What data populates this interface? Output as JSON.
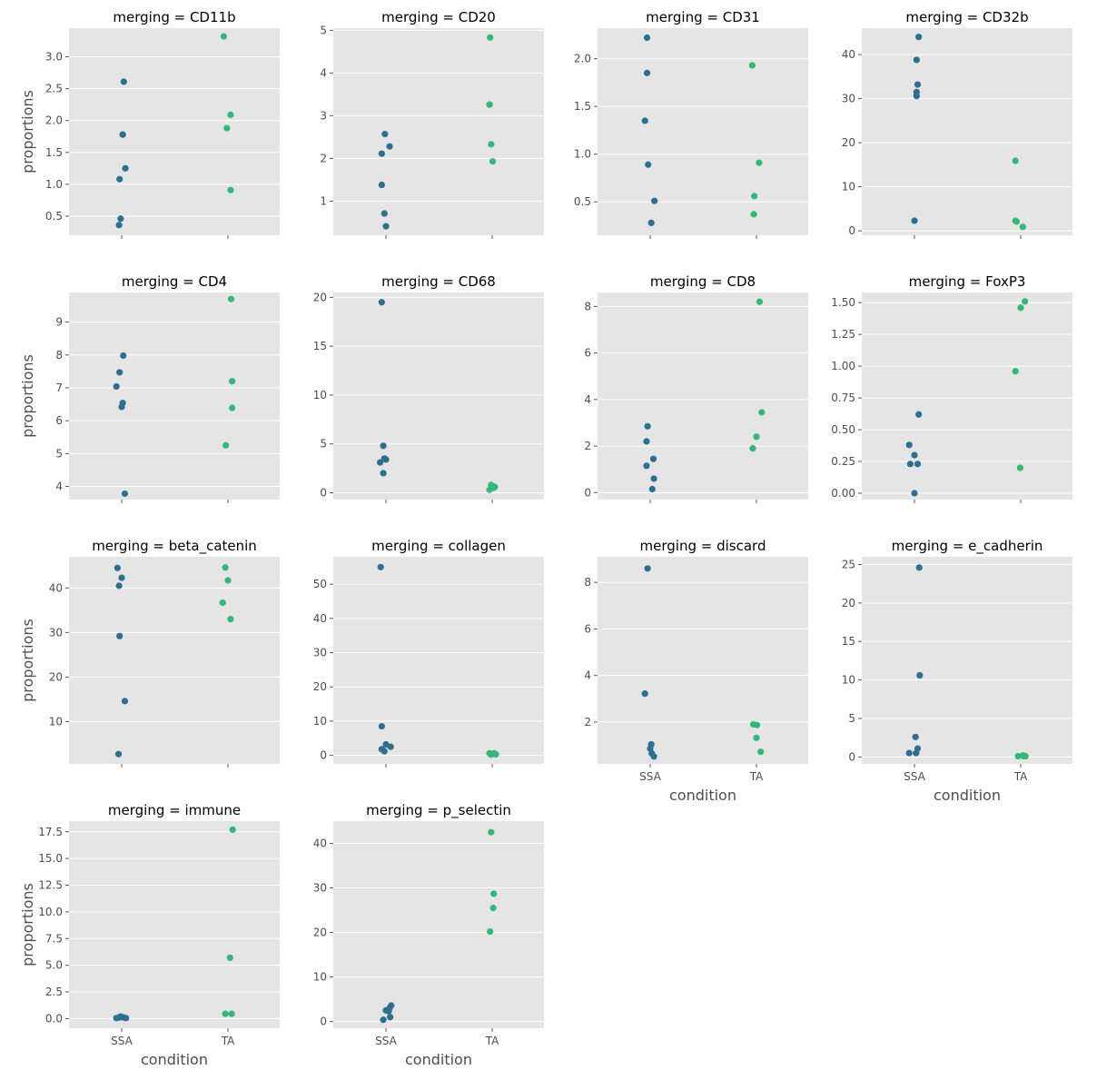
{
  "chart_data": {
    "type": "scatter",
    "layout": "facet-grid",
    "xlabel": "condition",
    "ylabel": "proportions",
    "x_categories": [
      "SSA",
      "TA"
    ],
    "colors": {
      "SSA": "#2e6e8e",
      "TA": "#35b779"
    },
    "grid": "horizontal",
    "facets": [
      {
        "title": "merging = CD11b",
        "ylim": [
          0.2,
          3.45
        ],
        "yticks": [
          "0.5",
          "1.0",
          "1.5",
          "2.0",
          "2.5",
          "3.0"
        ],
        "yticks_values": [
          0.5,
          1.0,
          1.5,
          2.0,
          2.5,
          3.0
        ],
        "points": {
          "SSA": [
            [
              -0.05,
              0.36
            ],
            [
              -0.02,
              0.46
            ],
            [
              -0.04,
              1.08
            ],
            [
              0.07,
              1.25
            ],
            [
              0.02,
              1.78
            ],
            [
              0.04,
              2.61
            ]
          ],
          "TA": [
            [
              -0.08,
              3.32
            ],
            [
              -0.02,
              1.88
            ],
            [
              0.05,
              2.09
            ],
            [
              0.05,
              0.91
            ]
          ]
        }
      },
      {
        "title": "merging = CD20",
        "ylim": [
          0.2,
          5.05
        ],
        "yticks": [
          "1",
          "2",
          "3",
          "4",
          "5"
        ],
        "yticks_values": [
          1,
          2,
          3,
          4,
          5
        ],
        "points": {
          "SSA": [
            [
              0.0,
              0.41
            ],
            [
              -0.03,
              0.71
            ],
            [
              -0.08,
              1.38
            ],
            [
              -0.08,
              2.11
            ],
            [
              -0.02,
              2.57
            ],
            [
              0.07,
              2.28
            ]
          ],
          "TA": [
            [
              -0.04,
              4.83
            ],
            [
              -0.05,
              3.26
            ],
            [
              -0.02,
              2.33
            ],
            [
              0.01,
              1.93
            ]
          ]
        }
      },
      {
        "title": "merging = CD31",
        "ylim": [
          0.15,
          2.32
        ],
        "yticks": [
          "0.5",
          "1.0",
          "1.5",
          "2.0"
        ],
        "yticks_values": [
          0.5,
          1.0,
          1.5,
          2.0
        ],
        "points": {
          "SSA": [
            [
              0.02,
              0.28
            ],
            [
              0.08,
              0.51
            ],
            [
              -0.04,
              0.89
            ],
            [
              -0.1,
              1.35
            ],
            [
              -0.06,
              1.85
            ],
            [
              -0.06,
              2.22
            ]
          ],
          "TA": [
            [
              -0.05,
              0.37
            ],
            [
              -0.04,
              0.56
            ],
            [
              0.05,
              0.91
            ],
            [
              -0.08,
              1.93
            ]
          ]
        }
      },
      {
        "title": "merging = CD32b",
        "ylim": [
          -1.0,
          46.0
        ],
        "yticks": [
          "0",
          "10",
          "20",
          "30",
          "40"
        ],
        "yticks_values": [
          0,
          10,
          20,
          30,
          40
        ],
        "points": {
          "SSA": [
            [
              0.0,
              2.3
            ],
            [
              0.04,
              30.6
            ],
            [
              0.04,
              31.5
            ],
            [
              0.06,
              33.2
            ],
            [
              0.04,
              38.8
            ],
            [
              0.08,
              44.0
            ]
          ],
          "TA": [
            [
              -0.1,
              2.3
            ],
            [
              -0.08,
              2.1
            ],
            [
              0.04,
              0.9
            ],
            [
              -0.1,
              15.9
            ]
          ]
        }
      },
      {
        "title": "merging = CD4",
        "ylim": [
          3.6,
          9.9
        ],
        "yticks": [
          "4",
          "5",
          "6",
          "7",
          "8",
          "9"
        ],
        "yticks_values": [
          4,
          5,
          6,
          7,
          8,
          9
        ],
        "points": {
          "SSA": [
            [
              0.06,
              3.78
            ],
            [
              0.0,
              6.42
            ],
            [
              0.02,
              6.54
            ],
            [
              -0.1,
              7.04
            ],
            [
              -0.04,
              7.47
            ],
            [
              0.03,
              7.98
            ]
          ],
          "TA": [
            [
              -0.04,
              5.25
            ],
            [
              0.08,
              6.39
            ],
            [
              0.08,
              7.2
            ],
            [
              0.06,
              9.7
            ]
          ]
        }
      },
      {
        "title": "merging = CD68",
        "ylim": [
          -0.7,
          20.5
        ],
        "yticks": [
          "0",
          "5",
          "10",
          "15",
          "20"
        ],
        "yticks_values": [
          0,
          5,
          10,
          15,
          20
        ],
        "points": {
          "SSA": [
            [
              -0.05,
              2.0
            ],
            [
              -0.11,
              3.1
            ],
            [
              -0.03,
              3.5
            ],
            [
              0.0,
              3.4
            ],
            [
              -0.05,
              4.8
            ],
            [
              -0.08,
              19.5
            ]
          ],
          "TA": [
            [
              -0.05,
              0.3
            ],
            [
              -0.02,
              0.8
            ],
            [
              0.03,
              0.5
            ],
            [
              0.05,
              0.6
            ]
          ]
        }
      },
      {
        "title": "merging = CD8",
        "ylim": [
          -0.3,
          8.6
        ],
        "yticks": [
          "0",
          "2",
          "4",
          "6",
          "8"
        ],
        "yticks_values": [
          0,
          2,
          4,
          6,
          8
        ],
        "points": {
          "SSA": [
            [
              0.04,
              0.15
            ],
            [
              0.07,
              0.6
            ],
            [
              0.06,
              1.45
            ],
            [
              -0.07,
              1.15
            ],
            [
              -0.07,
              2.2
            ],
            [
              -0.05,
              2.85
            ]
          ],
          "TA": [
            [
              -0.07,
              1.9
            ],
            [
              0.0,
              2.4
            ],
            [
              0.1,
              3.45
            ],
            [
              0.06,
              8.2
            ]
          ]
        }
      },
      {
        "title": "merging = FoxP3",
        "ylim": [
          -0.05,
          1.58
        ],
        "yticks": [
          "0.00",
          "0.25",
          "0.50",
          "0.75",
          "1.00",
          "1.25",
          "1.50"
        ],
        "yticks_values": [
          0,
          0.25,
          0.5,
          0.75,
          1.0,
          1.25,
          1.5
        ],
        "points": {
          "SSA": [
            [
              0.0,
              0.0
            ],
            [
              -0.08,
              0.23
            ],
            [
              0.06,
              0.23
            ],
            [
              0.0,
              0.3
            ],
            [
              -0.1,
              0.38
            ],
            [
              0.08,
              0.62
            ]
          ],
          "TA": [
            [
              -0.01,
              0.2
            ],
            [
              -0.1,
              0.96
            ],
            [
              0.0,
              1.46
            ],
            [
              0.08,
              1.51
            ]
          ]
        }
      },
      {
        "title": "merging = beta_catenin",
        "ylim": [
          0.5,
          47.0
        ],
        "yticks": [
          "10",
          "20",
          "30",
          "40"
        ],
        "yticks_values": [
          10,
          20,
          30,
          40
        ],
        "points": {
          "SSA": [
            [
              -0.06,
              2.7
            ],
            [
              0.06,
              14.6
            ],
            [
              -0.04,
              29.2
            ],
            [
              -0.05,
              40.5
            ],
            [
              0.0,
              42.3
            ],
            [
              -0.08,
              44.5
            ]
          ],
          "TA": [
            [
              -0.1,
              36.7
            ],
            [
              0.05,
              33.0
            ],
            [
              0.0,
              41.7
            ],
            [
              -0.05,
              44.6
            ]
          ]
        }
      },
      {
        "title": "merging = collagen",
        "ylim": [
          -2.5,
          58.0
        ],
        "yticks": [
          "0",
          "10",
          "20",
          "30",
          "40",
          "50"
        ],
        "yticks_values": [
          0,
          10,
          20,
          30,
          40,
          50
        ],
        "points": {
          "SSA": [
            [
              -0.08,
              1.8
            ],
            [
              -0.03,
              1.2
            ],
            [
              0.0,
              3.2
            ],
            [
              0.09,
              2.5
            ],
            [
              -0.08,
              8.5
            ],
            [
              -0.1,
              55.0
            ]
          ],
          "TA": [
            [
              -0.05,
              0.6
            ],
            [
              -0.02,
              0.2
            ],
            [
              0.04,
              0.6
            ],
            [
              0.07,
              0.3
            ]
          ]
        }
      },
      {
        "title": "merging = discard",
        "ylim": [
          0.2,
          9.1
        ],
        "yticks": [
          "2",
          "4",
          "6",
          "8"
        ],
        "yticks_values": [
          2,
          4,
          6,
          8
        ],
        "points": {
          "SSA": [
            [
              -0.1,
              3.22
            ],
            [
              0.0,
              0.86
            ],
            [
              0.02,
              1.04
            ],
            [
              0.03,
              0.65
            ],
            [
              0.07,
              0.52
            ],
            [
              -0.05,
              8.6
            ]
          ],
          "TA": [
            [
              -0.06,
              1.9
            ],
            [
              0.01,
              1.87
            ],
            [
              0.0,
              1.32
            ],
            [
              0.08,
              0.72
            ]
          ]
        }
      },
      {
        "title": "merging = e_cadherin",
        "ylim": [
          -0.9,
          26.0
        ],
        "yticks": [
          "0",
          "5",
          "10",
          "15",
          "20",
          "25"
        ],
        "yticks_values": [
          0,
          5,
          10,
          15,
          20,
          25
        ],
        "points": {
          "SSA": [
            [
              -0.1,
              0.5
            ],
            [
              0.03,
              0.5
            ],
            [
              0.06,
              1.1
            ],
            [
              0.02,
              2.6
            ],
            [
              0.1,
              10.6
            ],
            [
              0.09,
              24.6
            ]
          ],
          "TA": [
            [
              -0.05,
              0.1
            ],
            [
              0.04,
              0.2
            ],
            [
              0.06,
              0.1
            ],
            [
              0.09,
              0.1
            ]
          ]
        }
      },
      {
        "title": "merging = immune",
        "ylim": [
          -0.9,
          18.5
        ],
        "yticks": [
          "0.0",
          "2.5",
          "5.0",
          "7.5",
          "10.0",
          "12.5",
          "15.0",
          "17.5"
        ],
        "yticks_values": [
          0,
          2.5,
          5,
          7.5,
          10,
          12.5,
          15,
          17.5
        ],
        "points": {
          "SSA": [
            [
              -0.1,
              0.05
            ],
            [
              -0.05,
              0.1
            ],
            [
              -0.02,
              0.2
            ],
            [
              0.0,
              0.15
            ],
            [
              0.04,
              0.1
            ],
            [
              0.08,
              0.05
            ]
          ],
          "TA": [
            [
              -0.05,
              0.45
            ],
            [
              0.07,
              0.45
            ],
            [
              0.04,
              5.7
            ],
            [
              0.09,
              17.7
            ]
          ]
        }
      },
      {
        "title": "merging = p_selectin",
        "ylim": [
          -1.5,
          45.0
        ],
        "yticks": [
          "0",
          "10",
          "20",
          "30",
          "40"
        ],
        "yticks_values": [
          0,
          10,
          20,
          30,
          40
        ],
        "points": {
          "SSA": [
            [
              -0.05,
              0.4
            ],
            [
              0.08,
              1.0
            ],
            [
              0.0,
              2.5
            ],
            [
              0.05,
              2.3
            ],
            [
              0.07,
              3.0
            ],
            [
              0.1,
              3.6
            ]
          ],
          "TA": [
            [
              -0.04,
              20.2
            ],
            [
              0.02,
              25.5
            ],
            [
              0.03,
              28.7
            ],
            [
              -0.02,
              42.5
            ]
          ]
        }
      }
    ]
  }
}
